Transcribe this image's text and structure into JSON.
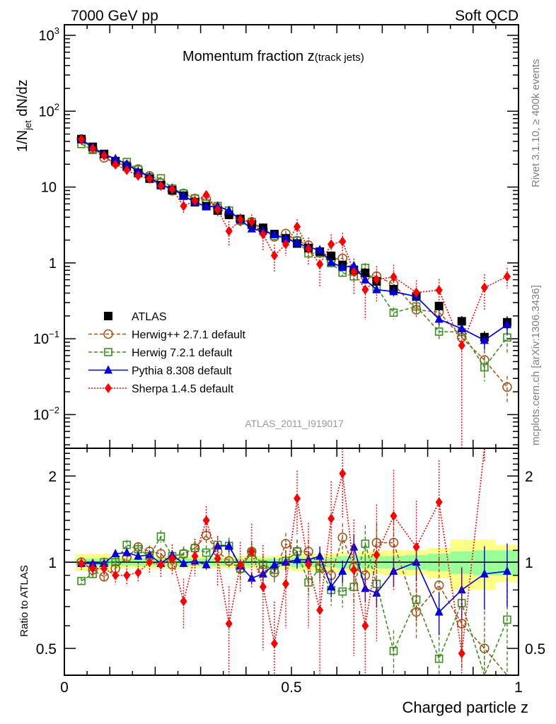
{
  "header": {
    "left": "7000 GeV pp",
    "right": "Soft QCD"
  },
  "side_text": {
    "top": "Rivet 3.1.10, ≥ 400k events",
    "bottom": "mcplots.cern.ch [arXiv:1306.3436]"
  },
  "chart_data": [
    {
      "type": "scatter",
      "panel": "main",
      "title": "Momentum fraction z",
      "title_suffix": "(track jets)",
      "ylabel": "1/N_jet dN/dz",
      "ylabel_parts": {
        "pre": "1/N",
        "sub": "jet",
        "post": " dN/dz"
      },
      "yscale": "log",
      "ylim": [
        0.0036,
        1380
      ],
      "xlim": [
        0,
        1
      ],
      "ytick_labels": [
        {
          "value": 1000,
          "base": "10",
          "exp": "3"
        },
        {
          "value": 100,
          "base": "10",
          "exp": "2"
        },
        {
          "value": 10,
          "base": "10",
          "exp": ""
        },
        {
          "value": 1,
          "base": "1",
          "exp": ""
        },
        {
          "value": 0.1,
          "base": "10",
          "exp": "−1"
        },
        {
          "value": 0.01,
          "base": "10",
          "exp": "−2"
        }
      ],
      "watermark": "ATLAS_2011_I919017",
      "legend_position": "bottom-left",
      "legend": [
        {
          "key": "atlas",
          "label": "ATLAS"
        },
        {
          "key": "herwigpp",
          "label": "Herwig++ 2.7.1 default"
        },
        {
          "key": "herwig7",
          "label": "Herwig 7.2.1 default"
        },
        {
          "key": "pythia",
          "label": "Pythia 8.308 default"
        },
        {
          "key": "sherpa",
          "label": "Sherpa 1.4.5 default"
        }
      ],
      "x": [
        0.0375,
        0.0625,
        0.0875,
        0.1125,
        0.1375,
        0.1625,
        0.1875,
        0.2125,
        0.2375,
        0.2625,
        0.2875,
        0.3125,
        0.3375,
        0.3625,
        0.3875,
        0.4125,
        0.4375,
        0.4625,
        0.4875,
        0.5125,
        0.5375,
        0.5625,
        0.5875,
        0.6125,
        0.6375,
        0.6625,
        0.6875,
        0.725,
        0.775,
        0.825,
        0.875,
        0.925,
        0.975
      ],
      "series": [
        {
          "key": "atlas",
          "name": "ATLAS",
          "color": "#000000",
          "marker": "square-filled",
          "line": "none",
          "values": [
            42.9,
            33.9,
            27.3,
            22.0,
            18.6,
            15.3,
            12.9,
            10.6,
            9.1,
            7.7,
            6.3,
            5.6,
            4.9,
            4.3,
            3.8,
            3.2,
            2.9,
            2.4,
            2.1,
            1.8,
            1.57,
            1.41,
            1.24,
            0.94,
            0.81,
            0.74,
            0.57,
            0.45,
            0.36,
            0.27,
            0.17,
            0.105,
            0.165
          ],
          "rel_err": [
            0.03,
            0.03,
            0.03,
            0.03,
            0.03,
            0.03,
            0.03,
            0.03,
            0.04,
            0.04,
            0.04,
            0.04,
            0.04,
            0.04,
            0.05,
            0.05,
            0.05,
            0.05,
            0.05,
            0.06,
            0.06,
            0.06,
            0.07,
            0.07,
            0.08,
            0.08,
            0.09,
            0.1,
            0.12,
            0.14,
            0.17,
            0.2,
            0.2
          ]
        },
        {
          "key": "herwigpp",
          "name": "Herwig++ 2.7.1 default",
          "color": "#a0581e",
          "marker": "circle-open",
          "line": "dashed",
          "ratio": [
            1.0,
            0.94,
            0.89,
            0.95,
            1.04,
            1.13,
            1.09,
            1.07,
            0.98,
            1.07,
            1.12,
            1.24,
            1.09,
            1.01,
            0.95,
            1.09,
            0.94,
            0.92,
            1.16,
            1.09,
            1.09,
            0.97,
            0.9,
            1.22,
            0.96,
            0.9,
            1.17,
            1.17,
            0.67,
            0.83,
            0.61,
            0.5,
            0.14
          ],
          "rel_err": [
            0.03,
            0.04,
            0.04,
            0.04,
            0.04,
            0.04,
            0.05,
            0.05,
            0.05,
            0.06,
            0.06,
            0.06,
            0.07,
            0.07,
            0.08,
            0.08,
            0.08,
            0.09,
            0.09,
            0.1,
            0.1,
            0.1,
            0.12,
            0.12,
            0.14,
            0.16,
            0.17,
            0.18,
            0.2,
            0.25,
            0.3,
            0.35,
            0.4
          ]
        },
        {
          "key": "herwig7",
          "name": "Herwig 7.2.1 default",
          "color": "#3a8f1e",
          "marker": "square-open",
          "line": "dashed",
          "ratio": [
            0.86,
            0.91,
            1.0,
            1.0,
            1.15,
            1.11,
            1.05,
            1.23,
            1.05,
            1.07,
            1.12,
            1.08,
            1.15,
            1.14,
            0.95,
            1.08,
            0.98,
            0.94,
            1.01,
            1.09,
            0.85,
            0.95,
            0.8,
            0.79,
            0.82,
            1.16,
            0.84,
            0.49,
            0.74,
            0.46,
            0.72,
            0.4,
            0.63
          ],
          "rel_err": [
            0.03,
            0.04,
            0.04,
            0.04,
            0.04,
            0.04,
            0.05,
            0.05,
            0.05,
            0.06,
            0.06,
            0.06,
            0.07,
            0.07,
            0.08,
            0.08,
            0.08,
            0.09,
            0.09,
            0.1,
            0.1,
            0.1,
            0.12,
            0.12,
            0.14,
            0.16,
            0.17,
            0.18,
            0.2,
            0.25,
            0.3,
            0.35,
            0.4
          ]
        },
        {
          "key": "pythia",
          "name": "Pythia 8.308 default",
          "color": "#0000dd",
          "marker": "triangle-filled",
          "line": "solid",
          "ratio": [
            0.99,
            0.99,
            0.99,
            1.07,
            1.08,
            1.05,
            1.06,
            0.99,
            1.06,
            0.99,
            1.01,
            0.98,
            1.14,
            1.14,
            0.97,
            0.88,
            0.91,
            0.98,
            1.0,
            1.02,
            1.02,
            1.05,
            0.82,
            0.93,
            1.13,
            0.81,
            0.78,
            0.93,
            1.0,
            0.67,
            0.8,
            0.91,
            0.93
          ],
          "rel_err": [
            0.02,
            0.02,
            0.02,
            0.02,
            0.02,
            0.03,
            0.03,
            0.03,
            0.03,
            0.03,
            0.04,
            0.04,
            0.04,
            0.05,
            0.05,
            0.05,
            0.06,
            0.06,
            0.06,
            0.07,
            0.07,
            0.08,
            0.08,
            0.09,
            0.1,
            0.1,
            0.11,
            0.12,
            0.14,
            0.17,
            0.2,
            0.25,
            0.25
          ]
        },
        {
          "key": "sherpa",
          "name": "Sherpa 1.4.5 default",
          "color": "#ff0000",
          "marker": "diamond-filled",
          "line": "dotted",
          "ratio": [
            0.99,
            0.95,
            0.95,
            0.9,
            0.9,
            0.92,
            1.0,
            0.98,
            1.03,
            0.73,
            1.05,
            1.4,
            1.03,
            0.61,
            0.98,
            1.09,
            0.82,
            0.52,
            0.84,
            1.67,
            0.98,
            0.68,
            1.42,
            2.04,
            0.94,
            0.6,
            1.06,
            1.45,
            1.13,
            1.62,
            0.48,
            4.5,
            4.0
          ],
          "rel_err": [
            0.05,
            0.07,
            0.08,
            0.07,
            0.08,
            0.08,
            0.09,
            0.1,
            0.12,
            0.2,
            0.15,
            0.12,
            0.2,
            0.35,
            0.2,
            0.25,
            0.4,
            0.4,
            0.3,
            0.25,
            0.4,
            0.5,
            0.35,
            0.3,
            0.5,
            0.6,
            0.5,
            0.45,
            0.45,
            0.4,
            1.0,
            0.5,
            0.3
          ]
        }
      ]
    },
    {
      "type": "scatter",
      "panel": "ratio",
      "ylabel": "Ratio to ATLAS",
      "xlabel": "Charged particle z",
      "yscale": "log",
      "ylim": [
        0.403,
        2.5
      ],
      "xlim": [
        0,
        1
      ],
      "ytick_labels": [
        {
          "value": 0.5,
          "label": "0.5"
        },
        {
          "value": 1,
          "label": "1"
        },
        {
          "value": 2,
          "label": "2"
        }
      ],
      "xtick_labels": [
        {
          "value": 0,
          "label": "0"
        },
        {
          "value": 0.5,
          "label": "0.5"
        },
        {
          "value": 1,
          "label": "1"
        }
      ],
      "band_colors": {
        "inner": "#99ff99",
        "outer": "#ffff88"
      },
      "band_inner_rel": [
        0.03,
        0.03,
        0.03,
        0.03,
        0.03,
        0.03,
        0.03,
        0.03,
        0.03,
        0.03,
        0.03,
        0.03,
        0.03,
        0.03,
        0.03,
        0.03,
        0.03,
        0.03,
        0.03,
        0.04,
        0.04,
        0.04,
        0.04,
        0.05,
        0.05,
        0.05,
        0.05,
        0.05,
        0.06,
        0.07,
        0.09,
        0.1,
        0.1
      ],
      "band_outer_rel": [
        0.07,
        0.07,
        0.07,
        0.05,
        0.05,
        0.05,
        0.05,
        0.05,
        0.05,
        0.05,
        0.05,
        0.05,
        0.05,
        0.05,
        0.05,
        0.05,
        0.05,
        0.05,
        0.06,
        0.07,
        0.07,
        0.07,
        0.07,
        0.08,
        0.08,
        0.09,
        0.09,
        0.1,
        0.1,
        0.12,
        0.2,
        0.2,
        0.15
      ]
    }
  ]
}
